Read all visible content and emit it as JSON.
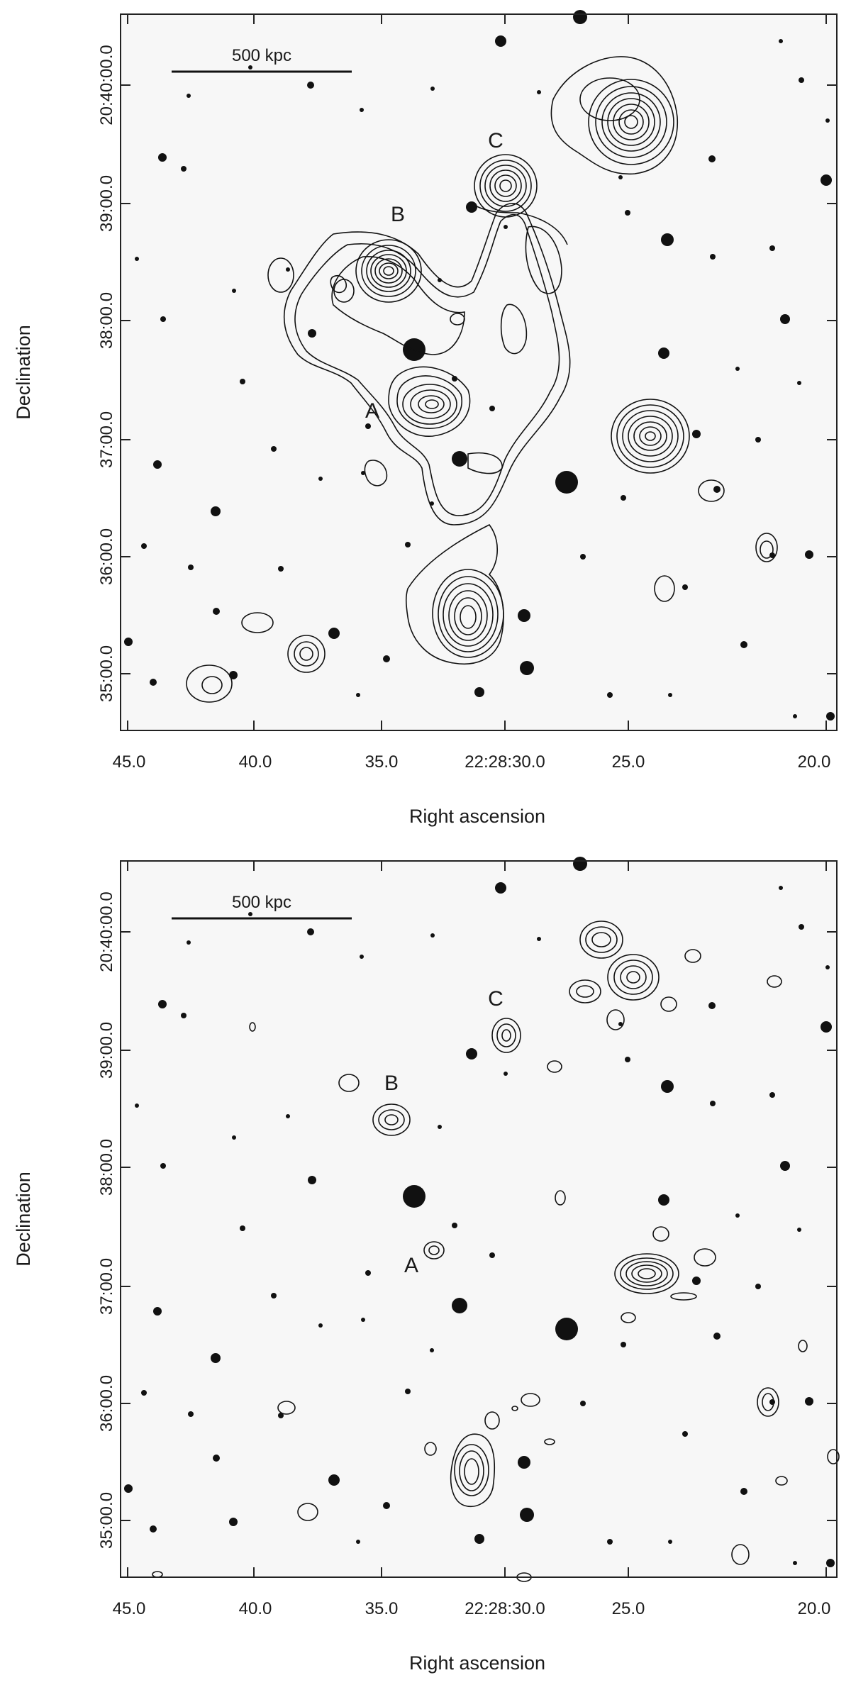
{
  "figure": {
    "panels": [
      {
        "id": "top",
        "x_axis": {
          "title": "Right ascension",
          "ticks": [
            "45.0",
            "40.0",
            "35.0",
            "22:28:30.0",
            "25.0",
            "20.0"
          ]
        },
        "y_axis": {
          "title": "Declination",
          "ticks": [
            "20:40:00.0",
            "39:00.0",
            "38:00.0",
            "37:00.0",
            "36:00.0",
            "35:00.0"
          ]
        },
        "scale_bar": {
          "label": "500 kpc"
        },
        "sources": [
          {
            "label": "A"
          },
          {
            "label": "B"
          },
          {
            "label": "C"
          }
        ]
      },
      {
        "id": "bottom",
        "x_axis": {
          "title": "Right ascension",
          "ticks": [
            "45.0",
            "40.0",
            "35.0",
            "22:28:30.0",
            "25.0",
            "20.0"
          ]
        },
        "y_axis": {
          "title": "Declination",
          "ticks": [
            "20:40:00.0",
            "39:00.0",
            "38:00.0",
            "37:00.0",
            "36:00.0",
            "35:00.0"
          ]
        },
        "scale_bar": {
          "label": "500 kpc"
        },
        "sources": [
          {
            "label": "A"
          },
          {
            "label": "B"
          },
          {
            "label": "C"
          }
        ]
      }
    ]
  },
  "colors": {
    "ink": "#1a1a1a",
    "background": "#f7f7f7",
    "frame": "#222222"
  }
}
